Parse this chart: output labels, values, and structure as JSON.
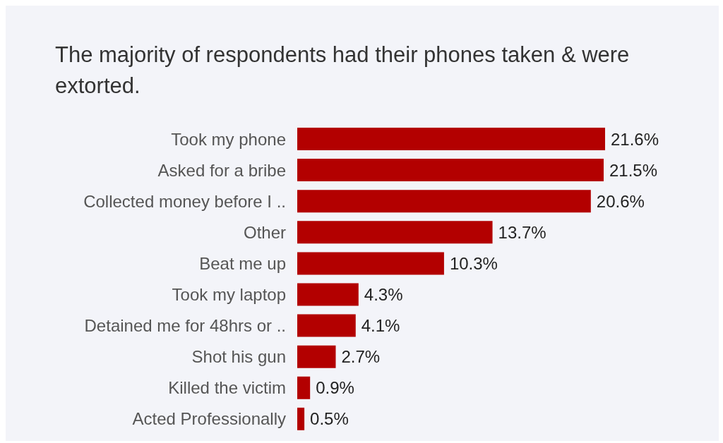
{
  "chart_data": {
    "type": "bar",
    "orientation": "horizontal",
    "title": "The majority of respondents had their phones taken & were extorted.",
    "categories": [
      "Took my phone",
      "Asked for a bribe",
      "Collected money before I ..",
      "Other",
      "Beat me up",
      "Took my laptop",
      "Detained me for 48hrs or ..",
      "Shot his gun",
      "Killed the victim",
      "Acted Professionally"
    ],
    "values": [
      21.6,
      21.5,
      20.6,
      13.7,
      10.3,
      4.3,
      4.1,
      2.7,
      0.9,
      0.5
    ],
    "value_labels": [
      "21.6%",
      "21.5%",
      "20.6%",
      "13.7%",
      "10.3%",
      "4.3%",
      "4.1%",
      "2.7%",
      "0.9%",
      "0.5%"
    ],
    "color": "#b30000",
    "grid": false,
    "legend": false
  }
}
